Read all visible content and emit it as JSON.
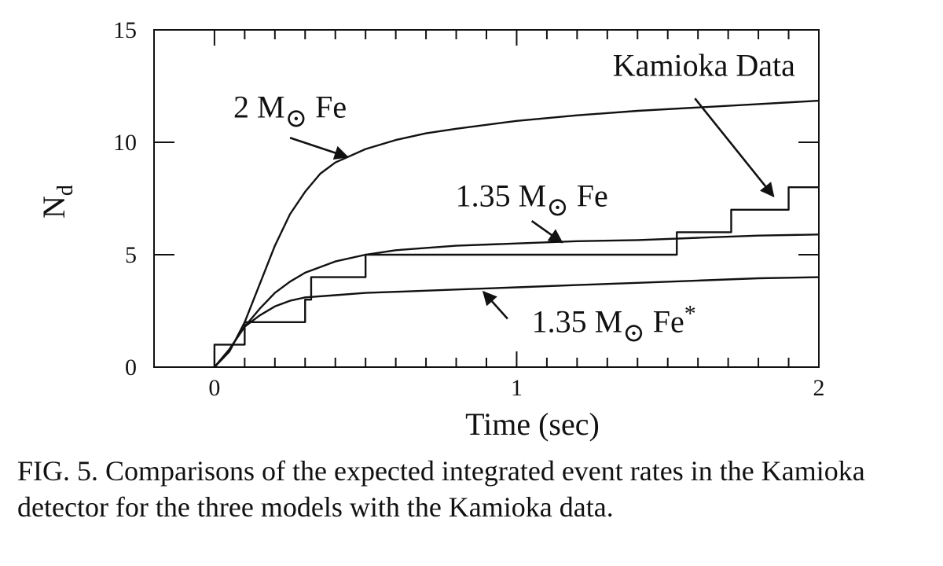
{
  "chart_data": {
    "type": "line",
    "xlabel": "Time (sec)",
    "ylabel": "N",
    "ylabel_subscript": "d",
    "xlim": [
      -0.2,
      2
    ],
    "ylim": [
      0,
      15
    ],
    "x_ticks": [
      {
        "value": 0,
        "label": "0"
      },
      {
        "value": 1,
        "label": "1"
      },
      {
        "value": 2,
        "label": "2"
      }
    ],
    "y_ticks": [
      {
        "value": 0,
        "label": "0"
      },
      {
        "value": 5,
        "label": "5"
      },
      {
        "value": 10,
        "label": "10"
      },
      {
        "value": 15,
        "label": "15"
      }
    ],
    "grid": false,
    "series": [
      {
        "id": "2msun",
        "kind": "curve",
        "x": [
          0,
          0.05,
          0.1,
          0.15,
          0.2,
          0.25,
          0.3,
          0.35,
          0.4,
          0.45,
          0.5,
          0.6,
          0.7,
          0.8,
          1.0,
          1.2,
          1.4,
          1.6,
          1.8,
          2.0
        ],
        "y": [
          0,
          0.7,
          2.0,
          3.7,
          5.4,
          6.8,
          7.8,
          8.6,
          9.1,
          9.4,
          9.7,
          10.1,
          10.4,
          10.6,
          10.95,
          11.2,
          11.4,
          11.55,
          11.7,
          11.85
        ]
      },
      {
        "id": "135msun",
        "kind": "curve",
        "x": [
          0,
          0.05,
          0.1,
          0.15,
          0.2,
          0.25,
          0.3,
          0.4,
          0.5,
          0.6,
          0.8,
          1.0,
          1.2,
          1.4,
          1.6,
          1.8,
          2.0
        ],
        "y": [
          0,
          0.8,
          1.8,
          2.6,
          3.3,
          3.8,
          4.2,
          4.7,
          5.0,
          5.2,
          5.4,
          5.5,
          5.6,
          5.65,
          5.75,
          5.85,
          5.9
        ]
      },
      {
        "id": "135msun_star",
        "kind": "curve",
        "x": [
          0,
          0.05,
          0.1,
          0.15,
          0.2,
          0.25,
          0.3,
          0.4,
          0.5,
          0.6,
          0.8,
          1.0,
          1.2,
          1.4,
          1.6,
          1.8,
          2.0
        ],
        "y": [
          0,
          0.8,
          1.8,
          2.3,
          2.7,
          2.95,
          3.1,
          3.2,
          3.3,
          3.35,
          3.45,
          3.55,
          3.65,
          3.75,
          3.85,
          3.95,
          4.0
        ]
      },
      {
        "id": "kamioka",
        "kind": "step",
        "x": [
          0,
          0.1,
          0.3,
          0.32,
          0.5,
          1.53,
          1.71,
          1.9,
          2.0
        ],
        "y": [
          1,
          2,
          3,
          4,
          5,
          6,
          7,
          8,
          8
        ]
      }
    ],
    "annotations": [
      {
        "id": "2msun",
        "text_main": "2 M",
        "text_sub": "⊙",
        "text_tail": " Fe",
        "sup": "",
        "x": 0.25,
        "y": 11.1,
        "anchor": "middle",
        "arrow_from": [
          0.25,
          10.2
        ],
        "arrow_to": [
          0.44,
          9.35
        ]
      },
      {
        "id": "135msun",
        "text_main": "1.35 M",
        "text_sub": "⊙",
        "text_tail": " Fe",
        "sup": "",
        "x": 1.05,
        "y": 7.15,
        "anchor": "middle",
        "arrow_from": [
          1.05,
          6.5
        ],
        "arrow_to": [
          1.15,
          5.55
        ]
      },
      {
        "id": "135msun_star",
        "text_main": "1.35 M",
        "text_sub": "⊙",
        "text_tail": " Fe",
        "sup": "*",
        "x": 1.05,
        "y": 1.55,
        "anchor": "start",
        "arrow_from": [
          0.97,
          2.15
        ],
        "arrow_to": [
          0.89,
          3.35
        ]
      },
      {
        "id": "kamioka",
        "text_main": "Kamioka Data",
        "text_sub": "",
        "text_tail": "",
        "sup": "",
        "x": 1.62,
        "y": 12.95,
        "anchor": "middle",
        "arrow_from": [
          1.59,
          11.95
        ],
        "arrow_to": [
          1.85,
          7.6
        ]
      }
    ]
  },
  "caption": "FIG. 5.  Comparisons of the expected integrated event rates in the Kamioka detector for the three models with the Kamioka data."
}
